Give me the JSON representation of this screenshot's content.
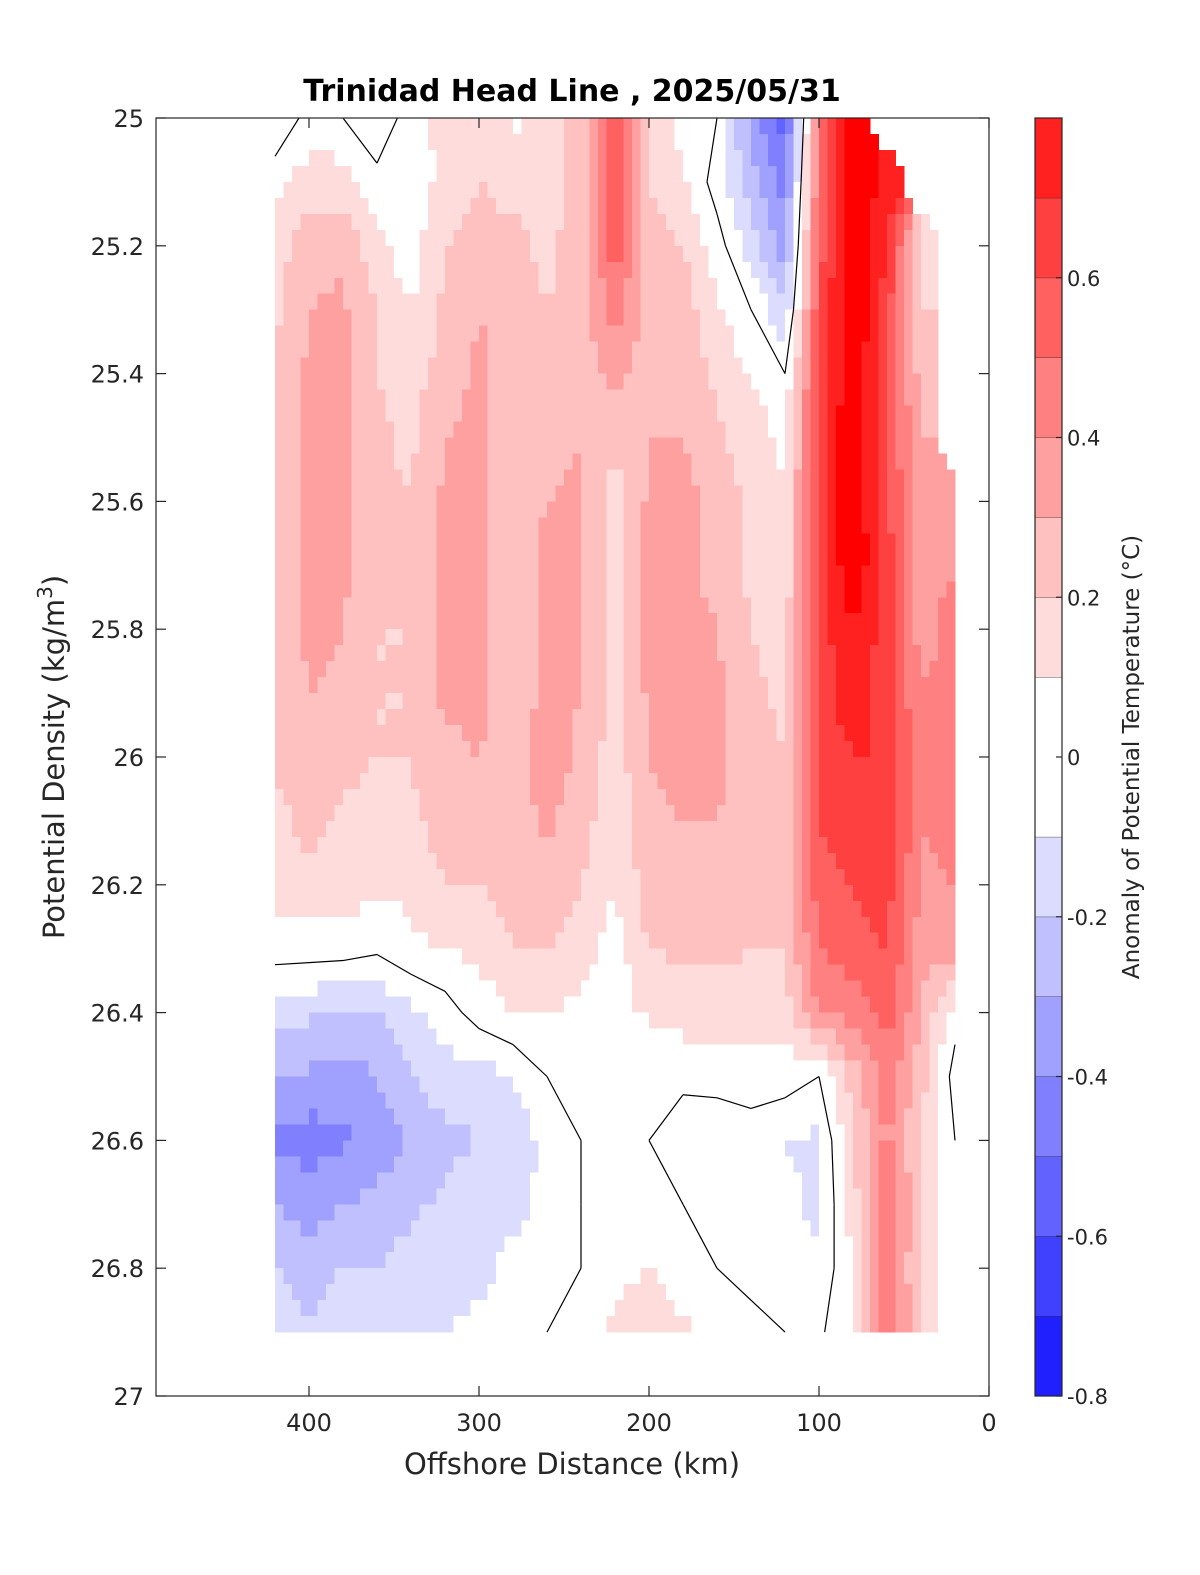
{
  "chart_data": {
    "type": "heatmap",
    "title": "Trinidad Head Line , 2025/05/31",
    "xlabel": "Offshore Distance (km)",
    "ylabel": "Potential Density (kg/m",
    "ylabel_sup": "3",
    "ylabel_tail": ")",
    "x_reversed": true,
    "y_reversed": true,
    "xlim": [
      490,
      0
    ],
    "ylim": [
      25,
      27
    ],
    "x_ticks": [
      400,
      300,
      200,
      100,
      0
    ],
    "y_ticks": [
      25,
      25.2,
      25.4,
      25.6,
      25.8,
      26,
      26.2,
      26.4,
      26.6,
      26.8,
      27
    ],
    "x_tick_labels": [
      "400",
      "300",
      "200",
      "100",
      "0"
    ],
    "y_tick_labels": [
      "25",
      "25.2",
      "25.4",
      "25.6",
      "25.8",
      "26",
      "26.2",
      "26.4",
      "26.6",
      "26.8",
      "27"
    ],
    "colorbar": {
      "label": "Anomaly of Potential Temperature (°C)",
      "range": [
        -0.8,
        0.8
      ],
      "ticks": [
        -0.8,
        -0.6,
        -0.4,
        -0.2,
        0,
        0.2,
        0.4,
        0.6
      ],
      "tick_labels": [
        "-0.8",
        "-0.6",
        "-0.4",
        "-0.2",
        "0",
        "0.2",
        "0.4",
        "0.6"
      ],
      "levels": [
        -0.8,
        -0.7,
        -0.6,
        -0.5,
        -0.4,
        -0.3,
        -0.2,
        -0.1,
        0.1,
        0.2,
        0.3,
        0.4,
        0.5,
        0.6,
        0.7,
        0.8
      ],
      "colors": [
        "#0000ff",
        "#2020ff",
        "#4040ff",
        "#6262ff",
        "#8080ff",
        "#a0a0ff",
        "#c0c0ff",
        "#dcdcff",
        "#ffffff",
        "#ffdcdc",
        "#ffc0c0",
        "#ffa0a0",
        "#ff8080",
        "#ff6060",
        "#ff4040",
        "#ff2020",
        "#ff0000"
      ]
    },
    "data_extent": {
      "x": [
        420,
        20
      ],
      "y": [
        25,
        26.9
      ]
    },
    "grid": false,
    "contour_zero_line": true,
    "field_x": [
      420,
      400,
      380,
      360,
      340,
      320,
      300,
      280,
      260,
      240,
      220,
      200,
      180,
      160,
      140,
      120,
      100,
      80,
      60,
      40,
      20
    ],
    "field_y": [
      25,
      25.1,
      25.2,
      25.3,
      25.4,
      25.5,
      25.6,
      25.7,
      25.8,
      25.9,
      26,
      26.1,
      26.2,
      26.3,
      26.4,
      26.5,
      26.6,
      26.7,
      26.8,
      26.9
    ],
    "field": [
      [
        -0.12,
        0.05,
        0.0,
        -0.12,
        0.08,
        0.12,
        0.18,
        0.08,
        0.12,
        0.25,
        0.55,
        0.18,
        0.05,
        0.0,
        -0.35,
        -0.55,
        0.45,
        0.9,
        null,
        null,
        null
      ],
      [
        0.08,
        0.15,
        0.15,
        0.05,
        0.0,
        0.15,
        0.2,
        0.18,
        0.15,
        0.25,
        0.65,
        0.2,
        0.12,
        -0.05,
        -0.25,
        -0.45,
        0.5,
        0.9,
        0.75,
        null,
        null
      ],
      [
        0.15,
        0.25,
        0.28,
        0.12,
        0.05,
        0.2,
        0.22,
        0.22,
        0.18,
        0.25,
        0.55,
        0.25,
        0.2,
        0.05,
        -0.15,
        -0.35,
        0.55,
        0.9,
        0.7,
        0.15,
        null
      ],
      [
        0.18,
        0.3,
        0.32,
        0.2,
        0.1,
        0.22,
        0.3,
        0.25,
        0.2,
        0.25,
        0.45,
        0.25,
        0.25,
        0.12,
        0.0,
        -0.2,
        0.6,
        0.9,
        0.65,
        0.2,
        null
      ],
      [
        0.2,
        0.32,
        0.32,
        0.2,
        0.15,
        0.25,
        0.32,
        0.25,
        0.2,
        0.25,
        0.32,
        0.25,
        0.25,
        0.18,
        0.1,
        0.0,
        0.62,
        0.9,
        0.62,
        0.25,
        null
      ],
      [
        0.22,
        0.32,
        0.32,
        0.22,
        0.18,
        0.3,
        0.32,
        0.25,
        0.25,
        0.3,
        0.22,
        0.3,
        0.3,
        0.22,
        0.15,
        0.08,
        0.65,
        0.9,
        0.6,
        0.3,
        null
      ],
      [
        0.25,
        0.32,
        0.32,
        0.22,
        0.2,
        0.32,
        0.32,
        0.25,
        0.3,
        0.32,
        0.15,
        0.32,
        0.35,
        0.25,
        0.18,
        0.1,
        0.65,
        0.9,
        0.62,
        0.32,
        0.4
      ],
      [
        0.25,
        0.32,
        0.32,
        0.22,
        0.2,
        0.32,
        0.33,
        0.25,
        0.32,
        0.32,
        0.15,
        0.35,
        0.35,
        0.25,
        0.18,
        0.12,
        0.65,
        0.9,
        0.65,
        0.35,
        0.4
      ],
      [
        0.25,
        0.32,
        0.3,
        0.2,
        0.2,
        0.32,
        0.32,
        0.25,
        0.32,
        0.32,
        0.15,
        0.35,
        0.35,
        0.3,
        0.2,
        0.15,
        0.65,
        0.8,
        0.65,
        0.35,
        0.45
      ],
      [
        0.22,
        0.3,
        0.28,
        0.2,
        0.2,
        0.32,
        0.32,
        0.25,
        0.32,
        0.3,
        0.15,
        0.32,
        0.35,
        0.32,
        0.22,
        0.18,
        0.65,
        0.75,
        0.65,
        0.4,
        0.45
      ],
      [
        0.2,
        0.28,
        0.22,
        0.2,
        0.2,
        0.28,
        0.3,
        0.25,
        0.35,
        0.28,
        0.15,
        0.3,
        0.35,
        0.32,
        0.25,
        0.2,
        0.65,
        0.7,
        0.7,
        0.4,
        0.45
      ],
      [
        0.18,
        0.22,
        0.18,
        0.18,
        0.18,
        0.25,
        0.25,
        0.25,
        0.32,
        0.25,
        0.12,
        0.28,
        0.3,
        0.3,
        0.25,
        0.22,
        0.6,
        0.65,
        0.7,
        0.4,
        0.42
      ],
      [
        0.15,
        0.18,
        0.15,
        0.12,
        0.12,
        0.2,
        0.2,
        0.25,
        0.28,
        0.2,
        0.1,
        0.25,
        0.25,
        0.25,
        0.25,
        0.22,
        0.55,
        0.6,
        0.65,
        0.38,
        0.4
      ],
      [
        0.05,
        0.05,
        0.05,
        0.02,
        0.08,
        0.1,
        0.12,
        0.2,
        0.2,
        0.15,
        0.05,
        0.2,
        0.22,
        0.22,
        0.2,
        0.2,
        0.5,
        0.55,
        0.6,
        0.35,
        0.35
      ],
      [
        -0.15,
        -0.18,
        -0.22,
        -0.2,
        -0.12,
        -0.05,
        0.05,
        0.1,
        0.1,
        0.08,
        0.05,
        0.12,
        0.15,
        0.15,
        0.15,
        0.15,
        0.4,
        0.45,
        0.55,
        0.3,
        0.05
      ],
      [
        -0.3,
        -0.32,
        -0.35,
        -0.3,
        -0.2,
        -0.15,
        -0.15,
        -0.1,
        0.0,
        0.0,
        0.0,
        0.0,
        0.02,
        0.05,
        0.05,
        0.05,
        0.0,
        0.25,
        0.45,
        0.25,
        -0.05
      ],
      [
        -0.42,
        -0.45,
        -0.42,
        -0.35,
        -0.3,
        -0.22,
        -0.2,
        -0.15,
        -0.08,
        0.0,
        0.02,
        0.0,
        -0.05,
        -0.1,
        -0.05,
        -0.1,
        -0.12,
        0.2,
        0.42,
        0.2,
        0.0
      ],
      [
        -0.3,
        -0.35,
        -0.3,
        -0.28,
        -0.22,
        -0.18,
        -0.15,
        -0.12,
        -0.08,
        0.0,
        0.05,
        0.05,
        0.0,
        -0.05,
        -0.05,
        -0.08,
        -0.12,
        0.15,
        0.5,
        0.2,
        0.0
      ],
      [
        -0.2,
        -0.25,
        -0.2,
        -0.2,
        -0.15,
        -0.15,
        -0.12,
        -0.08,
        -0.05,
        0.0,
        0.08,
        0.1,
        0.05,
        0.0,
        -0.05,
        -0.05,
        -0.08,
        0.1,
        0.45,
        0.2,
        0.0
      ],
      [
        -0.15,
        -0.2,
        -0.15,
        -0.12,
        -0.12,
        -0.1,
        -0.08,
        -0.05,
        0.0,
        0.05,
        0.12,
        0.15,
        0.12,
        0.05,
        0.05,
        0.0,
        -0.02,
        0.1,
        0.5,
        0.2,
        0.0
      ]
    ]
  }
}
